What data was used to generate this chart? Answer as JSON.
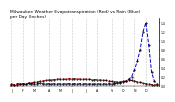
{
  "title": "Milwaukee Weather Evapotranspiration (Red) vs Rain (Blue)\nper Day (Inches)",
  "et_values": [
    0.03,
    0.03,
    0.03,
    0.04,
    0.04,
    0.05,
    0.06,
    0.07,
    0.08,
    0.09,
    0.1,
    0.11,
    0.12,
    0.13,
    0.14,
    0.14,
    0.15,
    0.15,
    0.15,
    0.15,
    0.16,
    0.16,
    0.16,
    0.16,
    0.15,
    0.15,
    0.15,
    0.15,
    0.14,
    0.14,
    0.14,
    0.13,
    0.13,
    0.12,
    0.11,
    0.1,
    0.09,
    0.09,
    0.09,
    0.1,
    0.11,
    0.12,
    0.12,
    0.11,
    0.09,
    0.08,
    0.06,
    0.05,
    0.04,
    0.03,
    0.03,
    0.02
  ],
  "rain_values": [
    0.04,
    0.03,
    0.05,
    0.04,
    0.05,
    0.04,
    0.06,
    0.05,
    0.04,
    0.05,
    0.06,
    0.05,
    0.04,
    0.05,
    0.04,
    0.05,
    0.04,
    0.05,
    0.04,
    0.05,
    0.05,
    0.04,
    0.05,
    0.04,
    0.05,
    0.04,
    0.05,
    0.04,
    0.05,
    0.04,
    0.05,
    0.04,
    0.05,
    0.04,
    0.05,
    0.04,
    0.05,
    0.06,
    0.07,
    0.08,
    0.1,
    0.15,
    0.2,
    0.35,
    0.55,
    0.8,
    1.2,
    1.4,
    0.9,
    0.3,
    0.1,
    0.05
  ],
  "x_ticks": [
    0,
    4,
    8,
    13,
    17,
    21,
    26,
    30,
    35,
    39,
    43,
    47
  ],
  "x_labels": [
    "J",
    "F",
    "M",
    "A",
    "M",
    "J",
    "J",
    "A",
    "S",
    "O",
    "N",
    "D"
  ],
  "y_ticks": [
    0.0,
    0.2,
    0.4,
    0.6,
    0.8,
    1.0,
    1.2,
    1.4
  ],
  "ylim": [
    0.0,
    1.5
  ],
  "et_color": "#cc0000",
  "rain_color": "#0000cc",
  "bg_color": "#ffffff",
  "grid_color": "#999999",
  "title_fontsize": 3.2
}
